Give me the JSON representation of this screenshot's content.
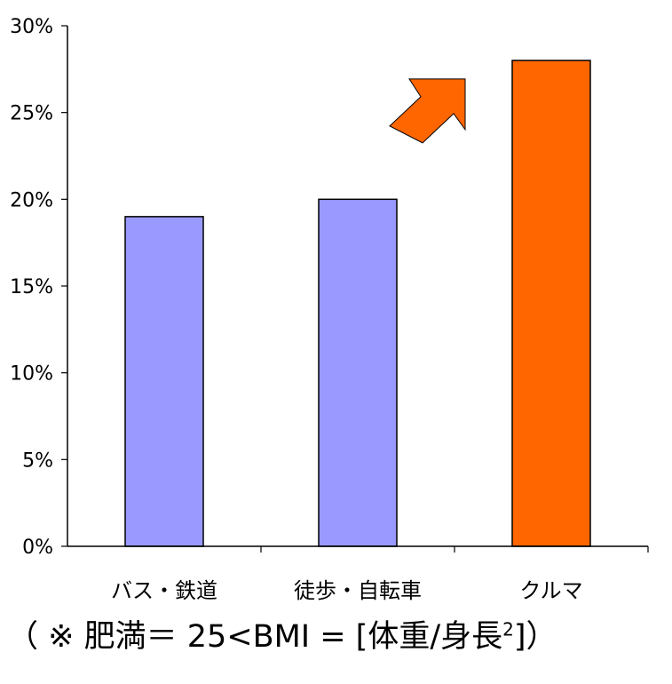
{
  "chart_data": {
    "type": "bar",
    "categories": [
      "バス・鉄道",
      "徒歩・自転車",
      "クルマ"
    ],
    "values": [
      19,
      20,
      28
    ],
    "unit": "%",
    "ylim": [
      0,
      30
    ],
    "yticks": [
      "0%",
      "5%",
      "10%",
      "15%",
      "20%",
      "25%",
      "30%"
    ],
    "title": "",
    "xlabel": "",
    "ylabel": "",
    "grid": false,
    "legend": "none",
    "colors": [
      "#9999ff",
      "#9999ff",
      "#ff6600"
    ],
    "annotations": [
      {
        "type": "arrow",
        "direction": "up-right",
        "color": "#ff6600",
        "between": [
          "徒歩・自転車",
          "クルマ"
        ]
      }
    ]
  },
  "footnote": {
    "prefix": "（ ※ 肥満＝  25<BMI = [体重/身長",
    "superscript": "2",
    "suffix": "]）"
  }
}
